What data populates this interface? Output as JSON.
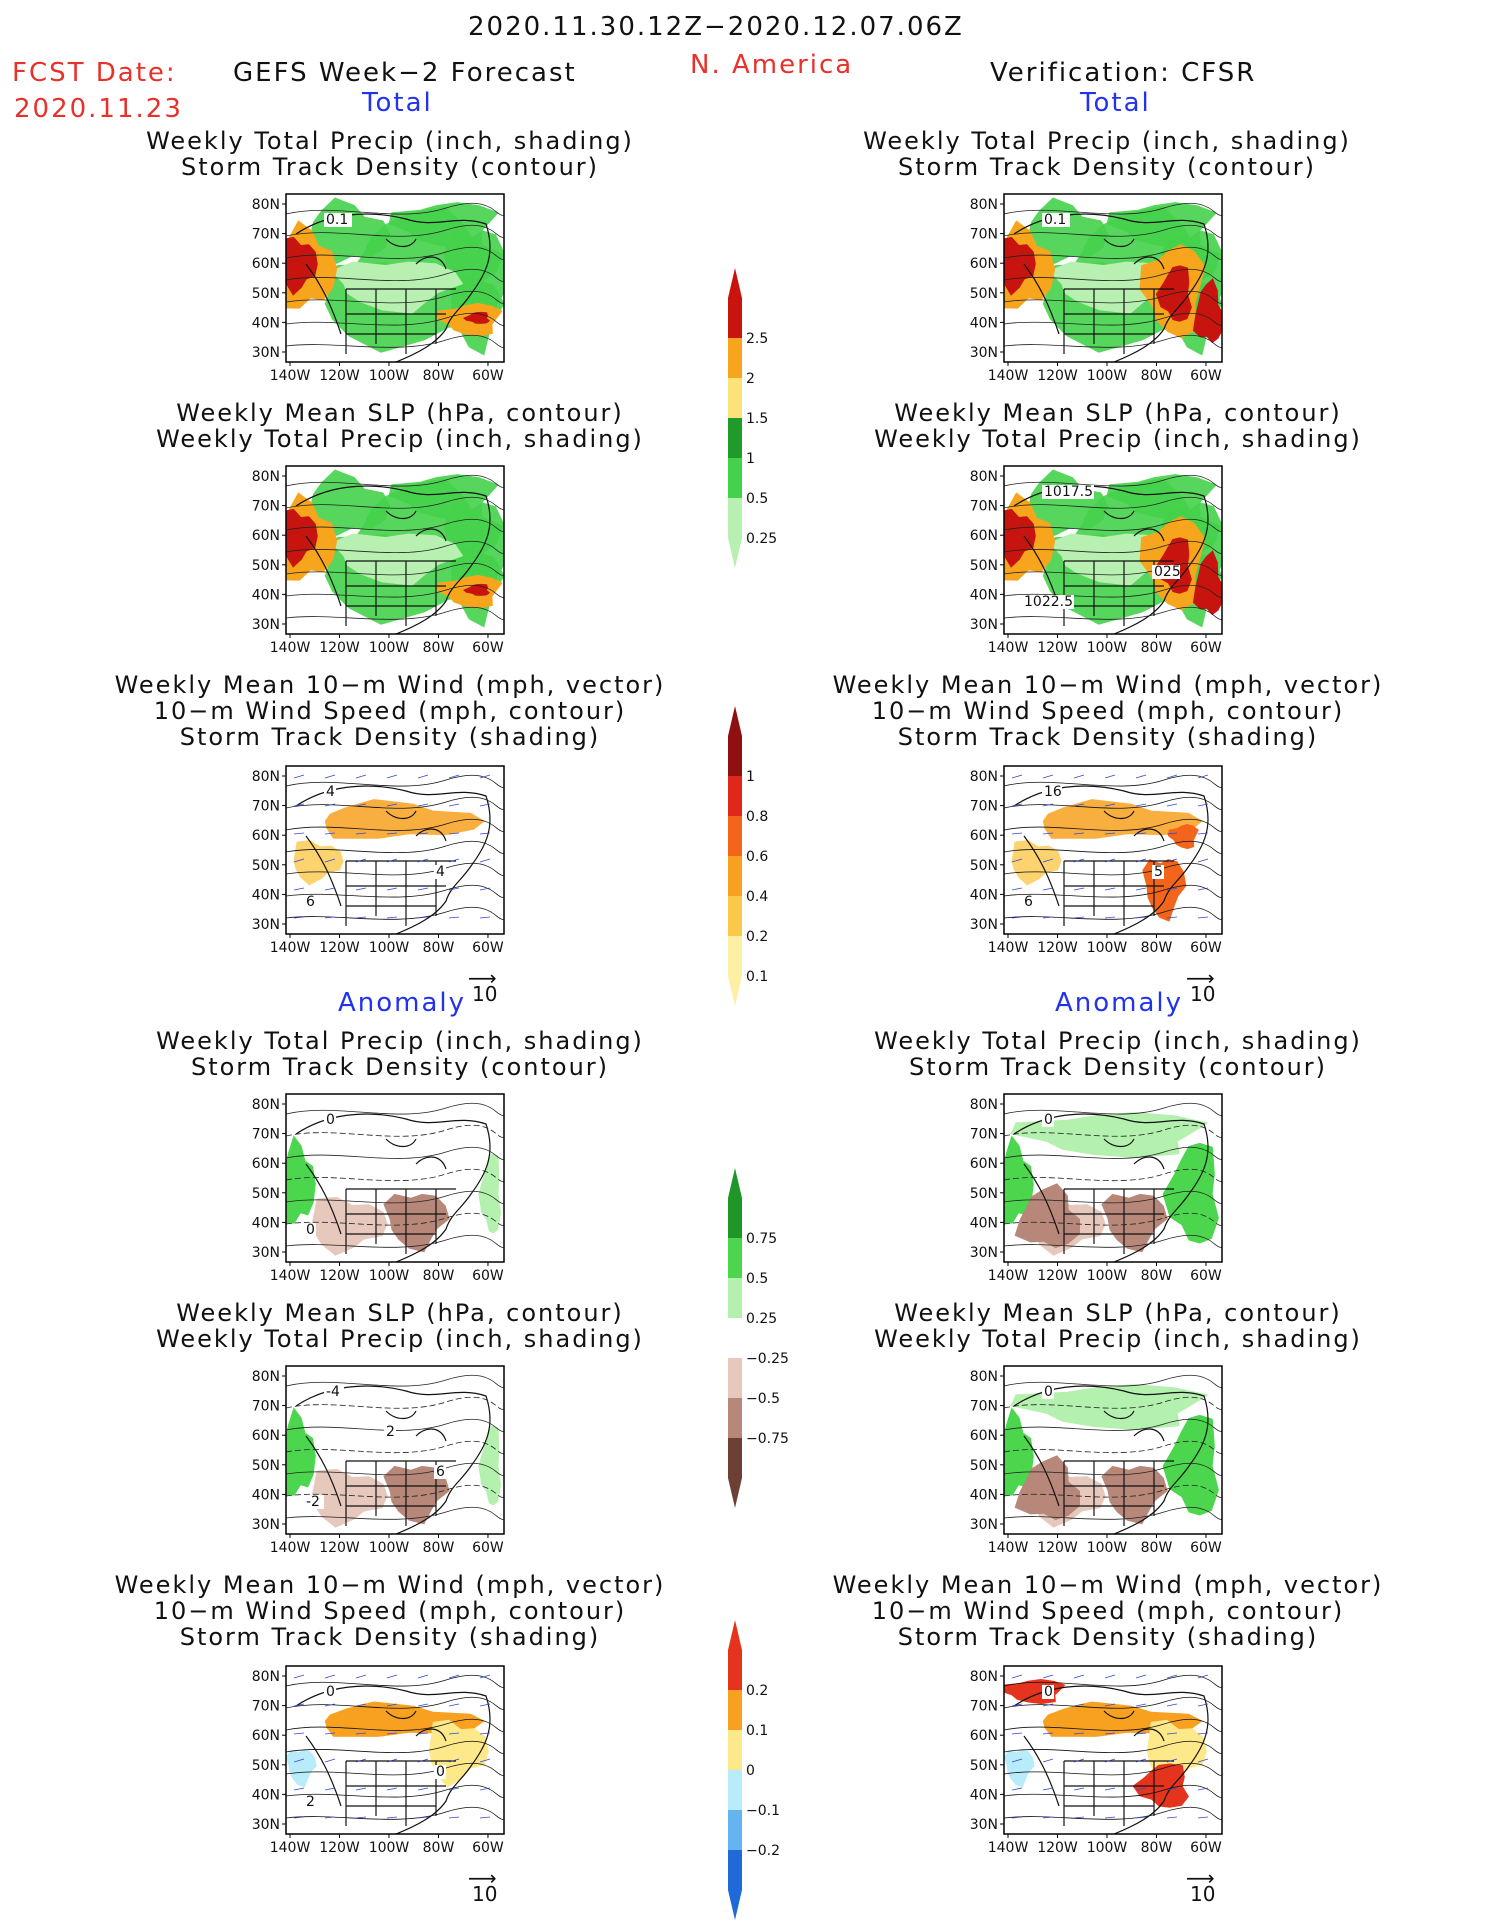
{
  "header": {
    "period": "2020.11.30.12Z−2020.12.07.06Z",
    "fcst_label": "FCST Date:",
    "fcst_date": "2020.11.23",
    "left_title": "GEFS Week−2 Forecast",
    "region": "N. America",
    "right_title": "Verification: CFSR"
  },
  "sections": {
    "total": "Total",
    "anomaly": "Anomaly"
  },
  "panel_titles": {
    "precip_storm": [
      "Weekly Total Precip (inch, shading)",
      "Storm Track Density (contour)"
    ],
    "slp_precip": [
      "Weekly Mean SLP (hPa, contour)",
      "Weekly Total Precip (inch, shading)"
    ],
    "wind_storm": [
      "Weekly Mean 10−m Wind (mph, vector)",
      "10−m Wind Speed (mph, contour)",
      "Storm Track Density (shading)"
    ]
  },
  "axes": {
    "lat_labels": [
      "80N",
      "70N",
      "60N",
      "50N",
      "40N",
      "30N"
    ],
    "lon_labels": [
      "140W",
      "120W",
      "100W",
      "80W",
      "60W"
    ]
  },
  "vector_ref": "10",
  "contour_labels": {
    "fcst_total_precip": [
      "0.1"
    ],
    "obs_total_precip": [
      "0.1"
    ],
    "obs_total_slp": [
      "1017.5",
      "1022.5",
      "025"
    ],
    "fcst_total_wind": [
      "4",
      "6",
      "4"
    ],
    "obs_total_wind": [
      "16",
      "6",
      "5"
    ],
    "fcst_anom_precip": [
      "0",
      "0"
    ],
    "obs_anom_precip": [
      "0"
    ],
    "fcst_anom_slp": [
      "-4",
      "-2",
      "6",
      "2"
    ],
    "obs_anom_slp": [
      "0"
    ],
    "fcst_anom_wind": [
      "0",
      "2",
      "0"
    ],
    "obs_anom_wind": [
      "0"
    ]
  },
  "colorbars": {
    "precip_total": {
      "labels": [
        "2.5",
        "2",
        "1.5",
        "1",
        "0.5",
        "0.25"
      ],
      "colors": [
        "#c8140f",
        "#f7a51c",
        "#fbe37a",
        "#1f9a2b",
        "#45d24b",
        "#b7f0b1"
      ]
    },
    "storm_total": {
      "labels": [
        "1",
        "0.8",
        "0.6",
        "0.4",
        "0.2",
        "0.1"
      ],
      "colors": [
        "#8e1010",
        "#e0281a",
        "#f4651c",
        "#f8a01f",
        "#fbc84a",
        "#fdf0a4"
      ]
    },
    "precip_anom": {
      "labels": [
        "0.75",
        "0.5",
        "0.25",
        "−0.25",
        "−0.5",
        "−0.75"
      ],
      "colors": [
        "#1e9628",
        "#4cd64e",
        "#b4f0ae",
        "#ffffff",
        "#e7c8bd",
        "#b7877a",
        "#6e4035"
      ]
    },
    "storm_anom": {
      "labels": [
        "0.2",
        "0.1",
        "0",
        "−0.1",
        "−0.2"
      ],
      "colors": [
        "#e4341d",
        "#f8a01f",
        "#fde88a",
        "#b8ecfa",
        "#63b4f0",
        "#1f6ad8"
      ]
    }
  },
  "colors": {
    "red_text": "#e8312a",
    "blue_text": "#2233ee"
  }
}
